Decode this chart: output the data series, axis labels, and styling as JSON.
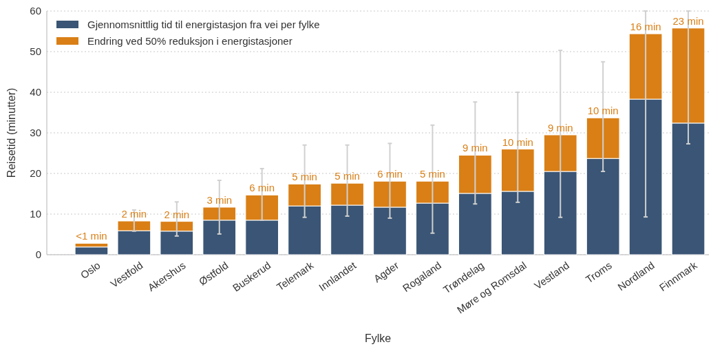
{
  "chart_data": {
    "type": "bar",
    "stacked": true,
    "xlabel": "Fylke",
    "ylabel": "Reisetid (minutter)",
    "categories": [
      "Oslo",
      "Vestfold",
      "Akershus",
      "Østfold",
      "Buskerud",
      "Telemark",
      "Innlandet",
      "Agder",
      "Rogaland",
      "Trøndelag",
      "Møre og Romsdal",
      "Vestland",
      "Troms",
      "Nordland",
      "Finnmark"
    ],
    "series": [
      {
        "name": "Gjennomsnittlig tid til energistasjon fra vei per fylke",
        "color": "#3a5575",
        "values": [
          1.9,
          5.9,
          5.8,
          8.5,
          8.5,
          12.0,
          12.2,
          11.7,
          12.7,
          15.1,
          15.6,
          20.5,
          23.7,
          38.3,
          32.4
        ],
        "errors": [
          null,
          [
            5.8,
            11.0
          ],
          [
            4.6,
            13.0
          ],
          [
            5.1,
            18.3
          ],
          [
            8.5,
            21.2
          ],
          [
            9.2,
            27.0
          ],
          [
            9.5,
            27.0
          ],
          [
            9.0,
            27.4
          ],
          [
            5.3,
            31.9
          ],
          [
            12.5,
            37.6
          ],
          [
            12.9,
            40.0
          ],
          [
            9.2,
            50.3
          ],
          [
            20.5,
            47.5
          ],
          [
            9.3,
            60
          ],
          [
            27.3,
            60
          ]
        ]
      },
      {
        "name": "Endring ved 50% reduksjon i energistasjoner",
        "color": "#d97f16",
        "values": [
          0.9,
          2.4,
          2.4,
          3.2,
          6.2,
          5.4,
          5.4,
          6.4,
          5.4,
          9.4,
          10.4,
          9.0,
          10.0,
          16.1,
          23.4
        ],
        "value_labels": [
          "<1 min",
          "2 min",
          "2 min",
          "3 min",
          "6 min",
          "5 min",
          "5 min",
          "6 min",
          "5 min",
          "9 min",
          "10 min",
          "9 min",
          "10 min",
          "16 min",
          "23 min"
        ]
      }
    ],
    "ylim": [
      0,
      60
    ],
    "yticks": [
      0,
      10,
      20,
      30,
      40,
      50,
      60
    ],
    "grid": "y",
    "legend": "top left"
  }
}
